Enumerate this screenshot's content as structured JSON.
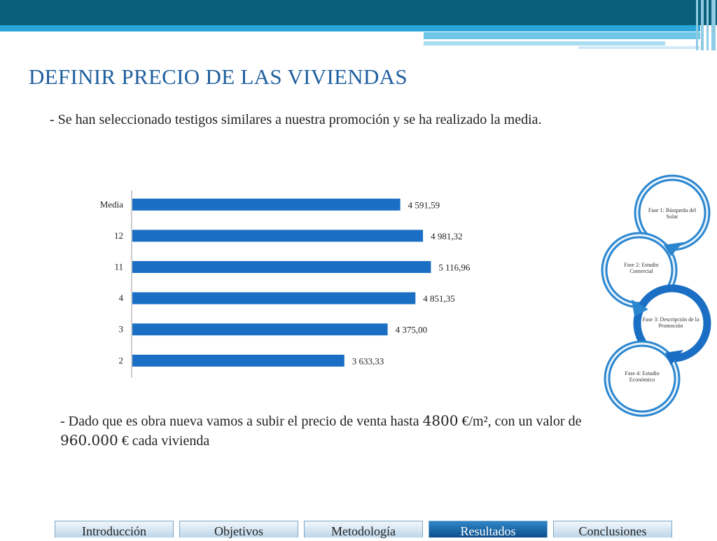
{
  "title": "DEFINIR PRECIO DE LAS VIVIENDAS",
  "intro_text": "- Se han seleccionado testigos similares a nuestra promoción y se ha realizado la media.",
  "conclusion": {
    "part1": "- Dado que es obra nueva vamos a subir el precio de venta hasta ",
    "price_m2": "4800",
    "part2": " €/m², con un valor  de ",
    "total": "960.000",
    "part3": " € cada vivienda"
  },
  "chart_data": {
    "type": "bar",
    "orientation": "horizontal",
    "categories": [
      "Media",
      "12",
      "11",
      "4",
      "3",
      "2"
    ],
    "values": [
      4591.59,
      4981.32,
      5116.96,
      4851.35,
      4375.0,
      3633.33
    ],
    "labels": [
      "4 591,59",
      "4 981,32",
      "5 116,96",
      "4 851,35",
      "4 375,00",
      "3 633,33"
    ],
    "xlim": [
      0,
      6000
    ],
    "bar_color": "#1a6fc4",
    "grid": false
  },
  "phases": [
    "Fase 1: Búsqueda del Solar",
    "Fase 2: Estudio Comercial",
    "Fase 3: Descripción de la Promoción",
    "Fase 4: Estudio Económico"
  ],
  "nav_tabs": [
    {
      "label": "Introducción",
      "active": false
    },
    {
      "label": "Objetivos",
      "active": false
    },
    {
      "label": "Metodología",
      "active": false
    },
    {
      "label": "Resultados",
      "active": true
    },
    {
      "label": "Conclusiones",
      "active": false
    }
  ],
  "colors": {
    "accent": "#1f5f9f",
    "header": "#08607a",
    "active_tab": "#0c4e8c"
  }
}
